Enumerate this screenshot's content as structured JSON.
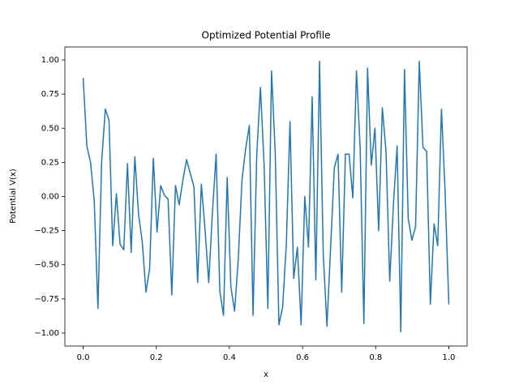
{
  "chart_data": {
    "type": "line",
    "title": "Optimized Potential Profile",
    "xlabel": "x",
    "ylabel": "Potential V(x)",
    "x": [
      0,
      0.0101,
      0.0202,
      0.0303,
      0.0404,
      0.0505,
      0.0606,
      0.0707,
      0.0808,
      0.0909,
      0.101,
      0.1111,
      0.1212,
      0.1313,
      0.1414,
      0.1515,
      0.1616,
      0.1717,
      0.1818,
      0.1919,
      0.202,
      0.2121,
      0.2222,
      0.2323,
      0.2424,
      0.2525,
      0.2626,
      0.2727,
      0.2828,
      0.2929,
      0.303,
      0.3131,
      0.3232,
      0.3333,
      0.3434,
      0.3535,
      0.3636,
      0.3737,
      0.3838,
      0.3939,
      0.404,
      0.4141,
      0.4242,
      0.4343,
      0.4444,
      0.4545,
      0.4646,
      0.4747,
      0.4848,
      0.4949,
      0.5051,
      0.5152,
      0.5253,
      0.5354,
      0.5455,
      0.5556,
      0.5657,
      0.5758,
      0.5859,
      0.596,
      0.6061,
      0.6162,
      0.6263,
      0.6364,
      0.6465,
      0.6566,
      0.6667,
      0.6768,
      0.6869,
      0.697,
      0.7071,
      0.7172,
      0.7273,
      0.7374,
      0.7475,
      0.7576,
      0.7677,
      0.7778,
      0.7879,
      0.798,
      0.8081,
      0.8182,
      0.8283,
      0.8384,
      0.8485,
      0.8586,
      0.8687,
      0.8788,
      0.8889,
      0.899,
      0.9091,
      0.9192,
      0.9293,
      0.9394,
      0.9495,
      0.9596,
      0.9697,
      0.9798,
      0.9899,
      1.0
    ],
    "series": [
      {
        "color": "#1f77b4",
        "values": [
          0.87,
          0.37,
          0.25,
          -0.03,
          -0.82,
          0.25,
          0.64,
          0.56,
          -0.36,
          0.02,
          -0.35,
          -0.39,
          0.24,
          -0.41,
          0.29,
          -0.13,
          -0.33,
          -0.7,
          -0.53,
          0.28,
          -0.26,
          0.08,
          0.01,
          -0.02,
          -0.72,
          0.08,
          -0.06,
          0.12,
          0.27,
          0.17,
          0.07,
          -0.63,
          0.09,
          -0.24,
          -0.63,
          -0.12,
          0.31,
          -0.69,
          -0.87,
          0.14,
          -0.66,
          -0.84,
          -0.46,
          0.12,
          0.35,
          0.52,
          -0.87,
          0.3,
          0.8,
          0.23,
          -0.82,
          0.92,
          0.32,
          -0.94,
          -0.81,
          -0.35,
          0.55,
          -0.6,
          -0.37,
          -0.94,
          0.0,
          -0.37,
          0.73,
          -0.61,
          0.99,
          -0.42,
          -0.95,
          -0.37,
          0.21,
          0.31,
          -0.7,
          0.31,
          0.31,
          -0.01,
          0.92,
          0.35,
          -0.93,
          0.94,
          0.23,
          0.5,
          -0.25,
          0.65,
          0.33,
          -0.62,
          -0.06,
          0.37,
          -0.99,
          0.93,
          -0.16,
          -0.32,
          -0.22,
          0.99,
          0.36,
          0.33,
          -0.79,
          -0.2,
          -0.36,
          0.64,
          0.03,
          -0.79
        ]
      }
    ],
    "xlim": [
      -0.05,
      1.05
    ],
    "ylim": [
      -1.095,
      1.095
    ],
    "xticks": [
      {
        "value": 0,
        "label": "0.0"
      },
      0.2,
      0.4,
      0.6,
      0.8,
      {
        "value": 1,
        "label": "1.0"
      }
    ],
    "yticks": [
      {
        "value": -1,
        "label": "−1.00"
      },
      {
        "value": -0.75,
        "label": "−0.75"
      },
      {
        "value": -0.5,
        "label": "−0.50"
      },
      {
        "value": -0.25,
        "label": "−0.25"
      },
      {
        "value": 0,
        "label": "0.00"
      },
      0.25,
      {
        "value": 0.5,
        "label": "0.50"
      },
      0.75,
      {
        "value": 1,
        "label": "1.00"
      }
    ]
  }
}
